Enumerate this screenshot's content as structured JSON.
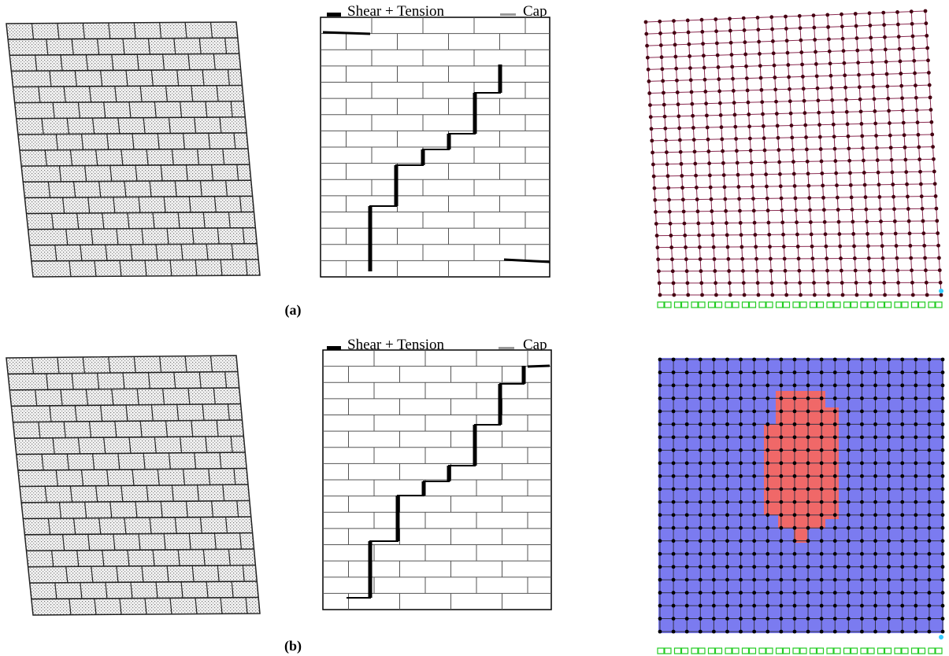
{
  "figure": {
    "rows": [
      {
        "label": "(a)",
        "legend": {
          "shear_tension": "Shear + Tension",
          "cap": "Cap"
        }
      },
      {
        "label": "(b)",
        "legend": {
          "shear_tension": "Shear + Tension",
          "cap": "Cap"
        }
      }
    ]
  }
}
